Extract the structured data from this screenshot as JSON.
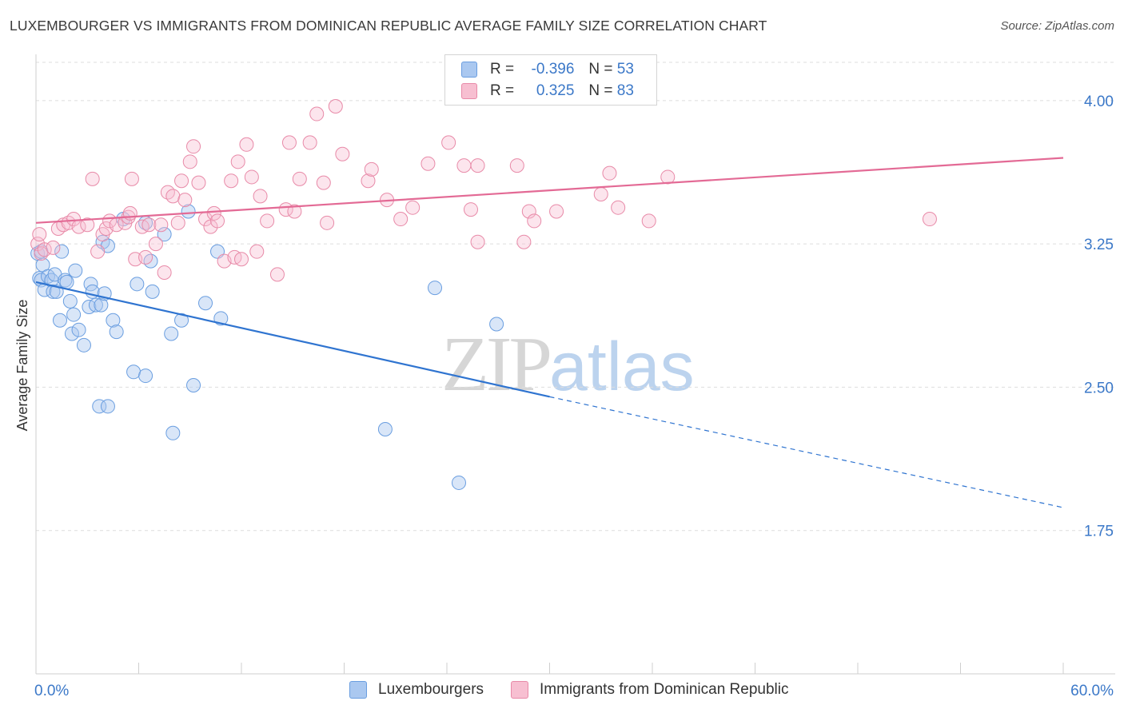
{
  "title": "LUXEMBOURGER VS IMMIGRANTS FROM DOMINICAN REPUBLIC AVERAGE FAMILY SIZE CORRELATION CHART",
  "source": "Source: ZipAtlas.com",
  "watermark": {
    "zip": "ZIP",
    "atlas": "atlas"
  },
  "legend": {
    "rows": [
      {
        "r_label": "R =",
        "r_value": "-0.396",
        "n_label": "N =",
        "n_value": "53",
        "color": "#aac8f0",
        "border": "#6a9ee0"
      },
      {
        "r_label": "R =",
        "r_value": "0.325",
        "n_label": "N =",
        "n_value": "83",
        "color": "#f7bfd1",
        "border": "#e88aa8"
      }
    ]
  },
  "bottom_legend": {
    "luxembourgers": "Luxembourgers",
    "dominican": "Immigrants from Dominican Republic"
  },
  "chart_data": {
    "type": "scatter",
    "title": "LUXEMBOURGER VS IMMIGRANTS FROM DOMINICAN REPUBLIC AVERAGE FAMILY SIZE CORRELATION CHART",
    "xlabel": "",
    "ylabel": "Average Family Size",
    "xlim": [
      0,
      60
    ],
    "ylim": [
      1.0,
      4.2
    ],
    "x_tick_labels": [
      "0.0%",
      "60.0%"
    ],
    "y_ticks": [
      1.75,
      2.5,
      3.25,
      4.0
    ],
    "y_tick_labels": [
      "1.75",
      "2.50",
      "3.25",
      "4.00"
    ],
    "grid": "horizontal dashed",
    "series": [
      {
        "name": "Luxembourgers",
        "color": "#6a9ee0",
        "fill": "rgba(170,200,240,0.45)",
        "points": [
          [
            0.1,
            3.2
          ],
          [
            0.2,
            3.07
          ],
          [
            0.3,
            3.06
          ],
          [
            0.4,
            3.14
          ],
          [
            0.5,
            3.01
          ],
          [
            0.7,
            3.08
          ],
          [
            0.9,
            3.06
          ],
          [
            1.0,
            3.0
          ],
          [
            1.1,
            3.09
          ],
          [
            1.2,
            3.0
          ],
          [
            1.4,
            2.85
          ],
          [
            1.5,
            3.21
          ],
          [
            1.7,
            3.06
          ],
          [
            1.8,
            3.05
          ],
          [
            2.0,
            2.95
          ],
          [
            2.1,
            2.78
          ],
          [
            2.2,
            2.88
          ],
          [
            2.3,
            3.11
          ],
          [
            2.5,
            2.8
          ],
          [
            2.8,
            2.72
          ],
          [
            3.1,
            2.92
          ],
          [
            3.2,
            3.04
          ],
          [
            3.3,
            3.0
          ],
          [
            3.5,
            2.93
          ],
          [
            3.7,
            2.4
          ],
          [
            3.8,
            2.93
          ],
          [
            3.9,
            3.26
          ],
          [
            4.0,
            2.99
          ],
          [
            4.2,
            3.24
          ],
          [
            4.2,
            2.4
          ],
          [
            4.5,
            2.85
          ],
          [
            4.7,
            2.79
          ],
          [
            5.1,
            3.38
          ],
          [
            5.7,
            2.58
          ],
          [
            5.9,
            3.04
          ],
          [
            6.4,
            2.56
          ],
          [
            6.7,
            3.16
          ],
          [
            6.8,
            3.0
          ],
          [
            7.5,
            3.3
          ],
          [
            7.9,
            2.78
          ],
          [
            8.0,
            2.26
          ],
          [
            8.5,
            2.85
          ],
          [
            8.9,
            3.42
          ],
          [
            9.2,
            2.51
          ],
          [
            9.9,
            2.94
          ],
          [
            10.6,
            3.21
          ],
          [
            10.8,
            2.86
          ],
          [
            20.4,
            2.28
          ],
          [
            23.3,
            3.02
          ],
          [
            24.7,
            2.0
          ],
          [
            26.9,
            2.83
          ],
          [
            0.3,
            3.21
          ],
          [
            6.4,
            3.36
          ]
        ],
        "trend": {
          "x0": 0,
          "y0": 3.05,
          "x1": 30,
          "y1": 2.45,
          "dash_to_x": 60,
          "dash_to_y": 1.87
        }
      },
      {
        "name": "Immigrants from Dominican Republic",
        "color": "#e88aa8",
        "fill": "rgba(247,191,209,0.40)",
        "points": [
          [
            0.1,
            3.25
          ],
          [
            0.3,
            3.2
          ],
          [
            0.5,
            3.22
          ],
          [
            1.0,
            3.23
          ],
          [
            1.3,
            3.33
          ],
          [
            1.6,
            3.35
          ],
          [
            1.9,
            3.36
          ],
          [
            2.2,
            3.38
          ],
          [
            2.5,
            3.34
          ],
          [
            3.0,
            3.35
          ],
          [
            3.3,
            3.59
          ],
          [
            3.6,
            3.21
          ],
          [
            3.9,
            3.3
          ],
          [
            4.1,
            3.33
          ],
          [
            4.3,
            3.37
          ],
          [
            4.7,
            3.35
          ],
          [
            5.2,
            3.36
          ],
          [
            5.4,
            3.39
          ],
          [
            5.5,
            3.41
          ],
          [
            5.6,
            3.59
          ],
          [
            5.8,
            3.17
          ],
          [
            6.2,
            3.34
          ],
          [
            6.4,
            3.18
          ],
          [
            6.6,
            3.35
          ],
          [
            7.0,
            3.25
          ],
          [
            7.3,
            3.35
          ],
          [
            7.5,
            3.1
          ],
          [
            7.7,
            3.52
          ],
          [
            8.0,
            3.5
          ],
          [
            8.3,
            3.36
          ],
          [
            8.5,
            3.58
          ],
          [
            8.7,
            3.48
          ],
          [
            9.0,
            3.68
          ],
          [
            9.2,
            3.76
          ],
          [
            9.5,
            3.57
          ],
          [
            9.9,
            3.38
          ],
          [
            10.2,
            3.34
          ],
          [
            10.4,
            3.41
          ],
          [
            10.6,
            3.37
          ],
          [
            11.0,
            3.16
          ],
          [
            11.4,
            3.58
          ],
          [
            11.6,
            3.18
          ],
          [
            11.8,
            3.68
          ],
          [
            12.0,
            3.17
          ],
          [
            12.3,
            3.77
          ],
          [
            12.6,
            3.6
          ],
          [
            12.9,
            3.21
          ],
          [
            13.1,
            3.5
          ],
          [
            13.5,
            3.37
          ],
          [
            14.1,
            3.09
          ],
          [
            14.6,
            3.43
          ],
          [
            14.8,
            3.78
          ],
          [
            15.1,
            3.42
          ],
          [
            15.4,
            3.59
          ],
          [
            16.0,
            3.78
          ],
          [
            16.4,
            3.93
          ],
          [
            16.8,
            3.57
          ],
          [
            17.0,
            3.36
          ],
          [
            17.5,
            3.97
          ],
          [
            17.9,
            3.72
          ],
          [
            19.4,
            3.58
          ],
          [
            19.6,
            3.64
          ],
          [
            20.5,
            3.48
          ],
          [
            21.3,
            3.38
          ],
          [
            22.0,
            3.44
          ],
          [
            22.9,
            3.67
          ],
          [
            24.1,
            3.78
          ],
          [
            25.0,
            3.66
          ],
          [
            25.4,
            3.43
          ],
          [
            25.8,
            3.26
          ],
          [
            25.8,
            3.66
          ],
          [
            28.1,
            3.66
          ],
          [
            28.5,
            3.26
          ],
          [
            28.8,
            3.42
          ],
          [
            29.1,
            3.37
          ],
          [
            30.4,
            3.42
          ],
          [
            33.0,
            3.51
          ],
          [
            33.5,
            3.62
          ],
          [
            34.0,
            3.44
          ],
          [
            35.8,
            3.37
          ],
          [
            36.9,
            3.6
          ],
          [
            52.2,
            3.38
          ],
          [
            0.2,
            3.3
          ]
        ],
        "trend": {
          "x0": 0,
          "y0": 3.36,
          "x1": 60,
          "y1": 3.7
        }
      }
    ]
  }
}
